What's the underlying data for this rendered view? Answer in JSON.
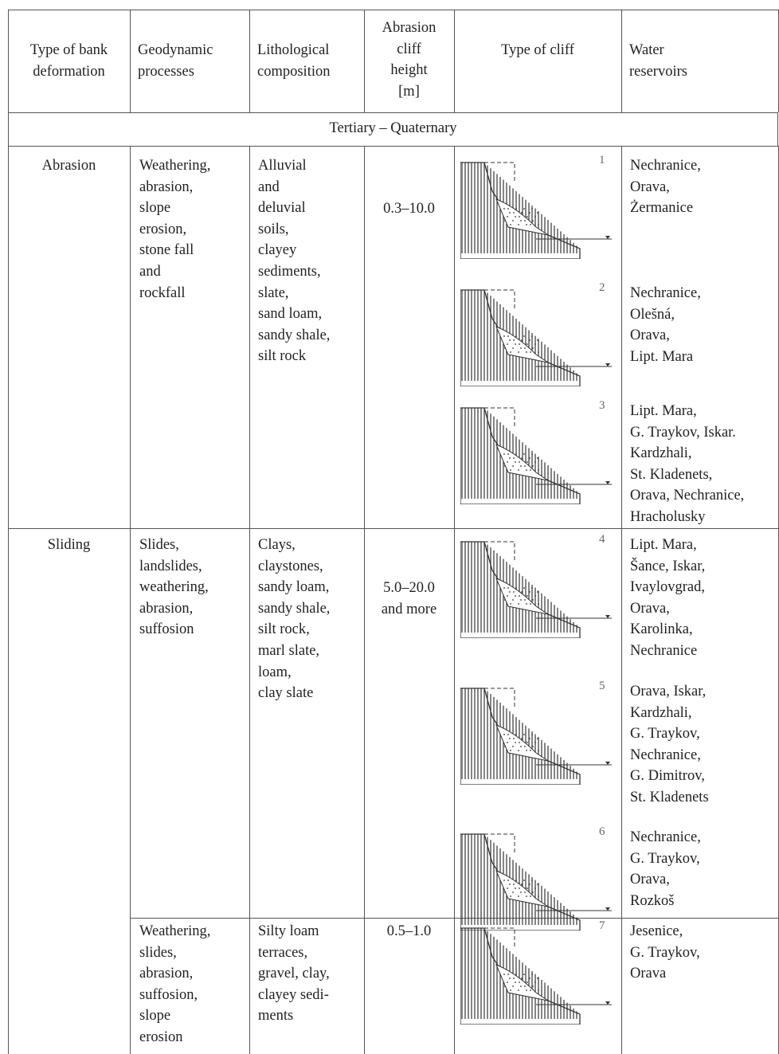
{
  "header": {
    "columns": [
      [
        "Type of bank",
        "deformation"
      ],
      [
        "Geodynamic",
        "processes"
      ],
      [
        "Lithological",
        "composition"
      ],
      [
        "Abrasion",
        "cliff",
        "height",
        "[m]"
      ],
      [
        "Type of cliff"
      ],
      [
        "Water",
        "reservoirs"
      ]
    ]
  },
  "section": "Tertiary – Quaternary",
  "rows": [
    {
      "type": [
        "Abrasion"
      ],
      "processes": [
        "Weathering,",
        "abrasion,",
        "slope",
        "erosion,",
        "stone fall",
        "and",
        "rockfall"
      ],
      "lithology": [
        "Alluvial",
        "and",
        "deluvial",
        "soils,",
        "clayey",
        "sediments,",
        "slate,",
        "sand loam,",
        "sandy shale,",
        "silt rock"
      ],
      "height": [
        "0.3–10.0"
      ],
      "cliffs": [
        {
          "number": 1,
          "reservoirs": [
            "Nechranice,",
            "Orava,",
            "Żermanice"
          ]
        },
        {
          "number": 2,
          "reservoirs": [
            "Nechranice,",
            "Olešná,",
            "Orava,",
            "Lipt. Mara"
          ]
        },
        {
          "number": 3,
          "reservoirs": [
            "Lipt. Mara,",
            "G. Traykov, Iskar.",
            "Kardzhali,",
            "St. Kladenets,",
            "Orava, Nechranice,",
            "Hracholusky"
          ]
        }
      ]
    },
    {
      "type": [
        "Sliding"
      ],
      "processes": [
        "Slides,",
        "landslides,",
        "weathering,",
        "abrasion,",
        "suffosion"
      ],
      "lithology": [
        "Clays,",
        "claystones,",
        "sandy loam,",
        "sandy shale,",
        "silt rock,",
        "marl slate,",
        "loam,",
        "clay slate"
      ],
      "height": [
        "5.0–20.0",
        "and more"
      ],
      "cliffs": [
        {
          "number": 4,
          "reservoirs": [
            "Lipt. Mara,",
            "Šance, Iskar,",
            "Ivaylovgrad,",
            "Orava,",
            "Karolinka,",
            "Nechranice"
          ]
        },
        {
          "number": 5,
          "reservoirs": [
            "Orava, Iskar,",
            "Kardzhali,",
            "G. Traykov,",
            "Nechranice,",
            "G. Dimitrov,",
            "St. Kladenets"
          ]
        },
        {
          "number": 6,
          "reservoirs": [
            "Nechranice,",
            "G. Traykov,",
            "Orava,",
            "Rozkoš"
          ]
        }
      ]
    },
    {
      "processes": [
        "Weathering,",
        "slides,",
        "abrasion,",
        "suffosion,",
        "slope",
        "erosion"
      ],
      "lithology": [
        "Silty loam",
        "terraces,",
        "gravel, clay,",
        "clayey sedi-",
        "ments"
      ],
      "height": [
        "0.5–1.0"
      ],
      "cliffs": [
        {
          "number": 7,
          "reservoirs": [
            "Jesenice,",
            "G. Traykov,",
            "Orava"
          ]
        }
      ]
    }
  ]
}
